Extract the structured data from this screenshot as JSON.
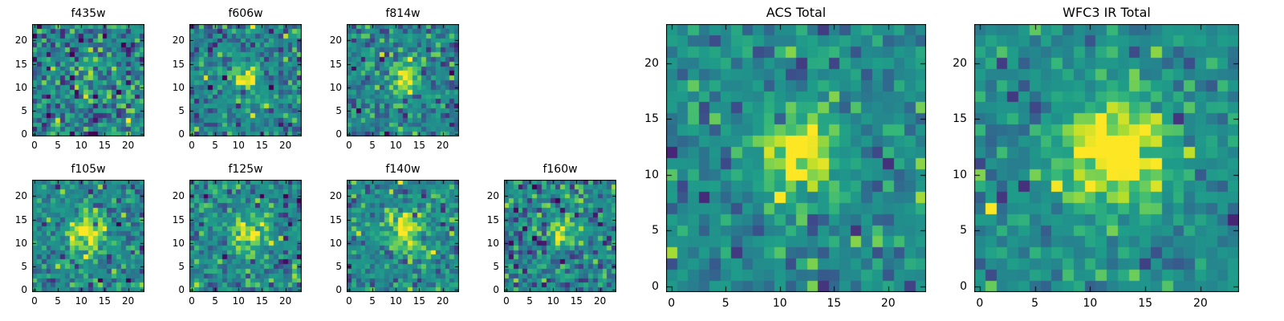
{
  "figure": {
    "background": "#ffffff",
    "text_color": "#000000",
    "frame_color": "#000000"
  },
  "chart_data": {
    "type": "heatmap",
    "colormap": "viridis",
    "colormap_stops": [
      "#440154",
      "#482878",
      "#3e4989",
      "#31688e",
      "#26828e",
      "#21918c",
      "#1f9e89",
      "#35b779",
      "#6ece58",
      "#b5de2b",
      "#fde725"
    ],
    "grid_size": 24,
    "x_ticks": [
      0,
      5,
      10,
      15,
      20
    ],
    "y_ticks": [
      0,
      5,
      10,
      15,
      20
    ],
    "value_range": [
      0,
      1
    ],
    "panels": [
      {
        "title": "f435w",
        "seed": 101,
        "source": {
          "cx": 11.6,
          "cy": 12.2,
          "amplitude": 0.25,
          "sigma": 2.3
        },
        "noise": {
          "mean": 0.45,
          "sigma": 0.21
        }
      },
      {
        "title": "f606w",
        "seed": 202,
        "source": {
          "cx": 11.8,
          "cy": 12.0,
          "amplitude": 0.62,
          "sigma": 1.9
        },
        "noise": {
          "mean": 0.44,
          "sigma": 0.17
        }
      },
      {
        "title": "f814w",
        "seed": 303,
        "source": {
          "cx": 12.0,
          "cy": 12.0,
          "amplitude": 0.6,
          "sigma": 2.0
        },
        "noise": {
          "mean": 0.45,
          "sigma": 0.16
        }
      },
      {
        "title": "f105w",
        "seed": 404,
        "source": {
          "cx": 11.6,
          "cy": 12.2,
          "amplitude": 0.58,
          "sigma": 2.7
        },
        "noise": {
          "mean": 0.46,
          "sigma": 0.17
        }
      },
      {
        "title": "f125w",
        "seed": 505,
        "source": {
          "cx": 11.8,
          "cy": 12.0,
          "amplitude": 0.52,
          "sigma": 2.4
        },
        "noise": {
          "mean": 0.46,
          "sigma": 0.18
        }
      },
      {
        "title": "f140w",
        "seed": 606,
        "source": {
          "cx": 12.0,
          "cy": 12.2,
          "amplitude": 0.55,
          "sigma": 2.8
        },
        "noise": {
          "mean": 0.47,
          "sigma": 0.17
        }
      },
      {
        "title": "f160w",
        "seed": 707,
        "source": {
          "cx": 12.2,
          "cy": 12.0,
          "amplitude": 0.5,
          "sigma": 2.2
        },
        "noise": {
          "mean": 0.45,
          "sigma": 0.18
        }
      },
      {
        "title": "ACS Total",
        "seed": 808,
        "source": {
          "cx": 11.8,
          "cy": 12.0,
          "amplitude": 0.62,
          "sigma": 2.6
        },
        "noise": {
          "mean": 0.47,
          "sigma": 0.14
        }
      },
      {
        "title": "WFC3 IR Total",
        "seed": 909,
        "source": {
          "cx": 12.2,
          "cy": 12.2,
          "amplitude": 0.66,
          "sigma": 3.3
        },
        "noise": {
          "mean": 0.48,
          "sigma": 0.13
        }
      }
    ]
  }
}
